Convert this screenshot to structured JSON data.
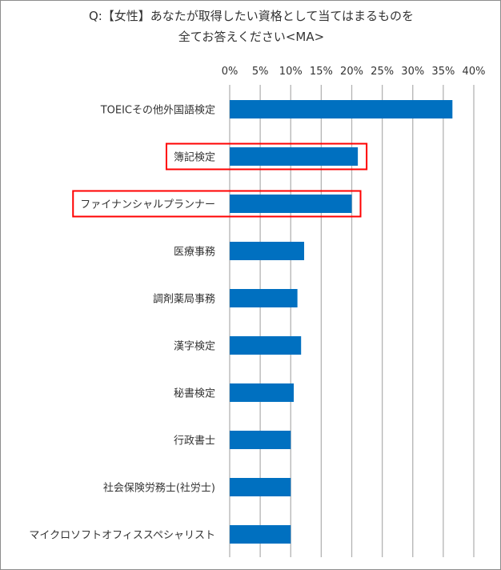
{
  "chart_data": {
    "type": "bar",
    "orientation": "horizontal",
    "title": [
      "Q:【女性】あなたが取得したい資格として当てはまるものを",
      "全てお答えください<MA>"
    ],
    "xlabel": "",
    "ylabel": "",
    "xlim": [
      0,
      40
    ],
    "ticks": [
      "0%",
      "5%",
      "10%",
      "15%",
      "20%",
      "25%",
      "30%",
      "35%",
      "40%"
    ],
    "tick_values": [
      0,
      5,
      10,
      15,
      20,
      25,
      30,
      35,
      40
    ],
    "grid": true,
    "categories": [
      "TOEICその他外国語検定",
      "簿記検定",
      "ファイナンシャルプランナー",
      "医療事務",
      "調剤薬局事務",
      "漢字検定",
      "秘書検定",
      "行政書士",
      "社会保険労務士(社労士)",
      "マイクロソフトオフィススペシャリスト"
    ],
    "values": [
      36.5,
      21.0,
      20.0,
      12.2,
      11.1,
      11.7,
      10.5,
      10.0,
      10.0,
      10.0
    ],
    "highlighted": [
      1,
      2
    ],
    "bar_color": "#0070c0",
    "highlight_color": "#ff0000"
  }
}
